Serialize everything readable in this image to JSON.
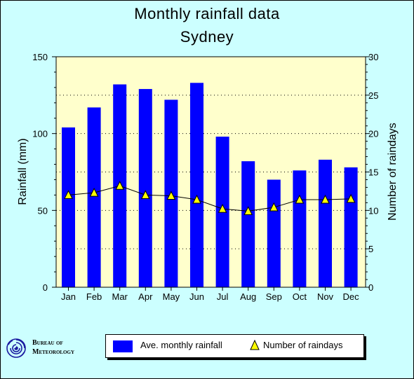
{
  "chart_data": {
    "type": "bar",
    "title": "Monthly rainfall data",
    "subtitle": "Sydney",
    "categories": [
      "Jan",
      "Feb",
      "Mar",
      "Apr",
      "May",
      "Jun",
      "Jul",
      "Aug",
      "Sep",
      "Oct",
      "Nov",
      "Dec"
    ],
    "series": [
      {
        "name": "Ave. monthly rainfall",
        "type": "bar",
        "axis": "left",
        "color": "#0000ff",
        "values": [
          104,
          117,
          132,
          129,
          122,
          133,
          98,
          82,
          70,
          76,
          83,
          78
        ]
      },
      {
        "name": "Number of raindays",
        "type": "line",
        "axis": "right",
        "color": "#ffff00",
        "values": [
          12.0,
          12.3,
          13.2,
          12.0,
          11.9,
          11.4,
          10.2,
          9.9,
          10.4,
          11.4,
          11.4,
          11.5
        ]
      }
    ],
    "ylabel": "Rainfall (mm)",
    "ylim": [
      0,
      150
    ],
    "y_ticks": [
      0,
      50,
      100,
      150
    ],
    "y2label": "Number of raindays",
    "y2lim": [
      0,
      30
    ],
    "y2_ticks": [
      0,
      5,
      10,
      15,
      20,
      25,
      30
    ],
    "grid": "horizontal dotted",
    "plot_background": "#ffffcc",
    "page_background": "#ccffff",
    "legend_position": "bottom"
  },
  "branding": {
    "logo_line1": "Bureau of",
    "logo_line2": "Meteorology"
  }
}
